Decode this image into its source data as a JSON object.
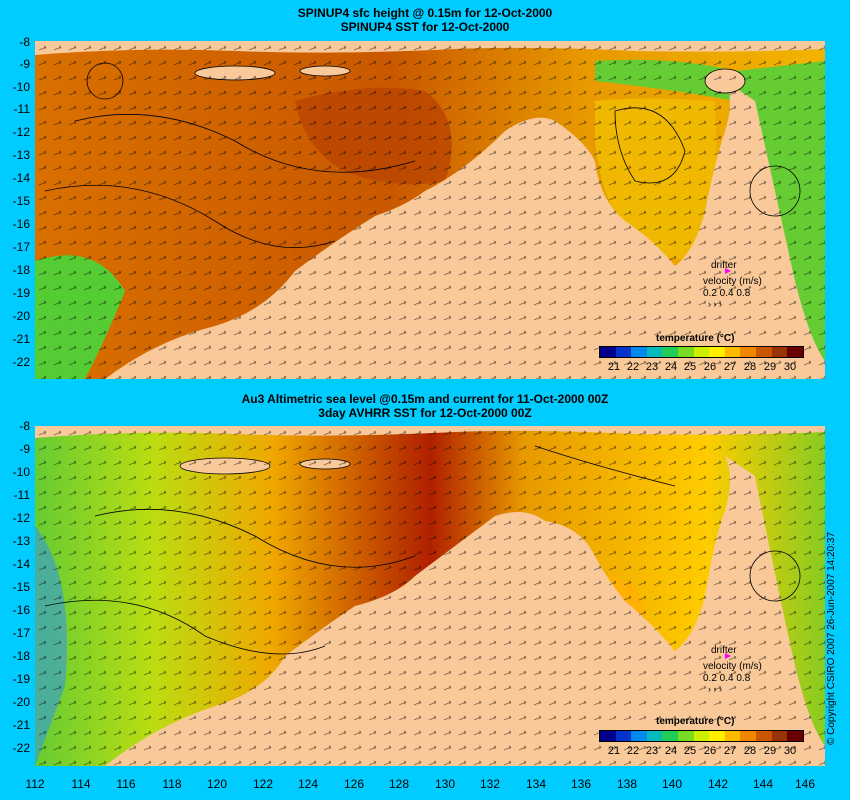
{
  "top_panel": {
    "title_line1": "SPINUP4 sfc height @ 0.15m for 12-Oct-2000",
    "title_line2": "SPINUP4 SST for 12-Oct-2000"
  },
  "bottom_panel": {
    "title_line1": "Au3 Altimetric sea level  @0.15m and current for 11-Oct-2000 00Z",
    "title_line2": "3day AVHRR SST for 12-Oct-2000 00Z"
  },
  "y_axis_labels": [
    "-8",
    "-9",
    "-10",
    "-11",
    "-12",
    "-13",
    "-14",
    "-15",
    "-16",
    "-17",
    "-18",
    "-19",
    "-20",
    "-21",
    "-22"
  ],
  "x_axis_labels": [
    "112",
    "114",
    "116",
    "118",
    "120",
    "122",
    "124",
    "126",
    "128",
    "130",
    "132",
    "134",
    "136",
    "138",
    "140",
    "142",
    "144",
    "146"
  ],
  "legend": {
    "title": "temperature (°C)",
    "ticks": [
      "21",
      "22",
      "23",
      "24",
      "25",
      "26",
      "27",
      "28",
      "29",
      "30"
    ],
    "colors": [
      "#00008b",
      "#0033cc",
      "#0088ee",
      "#00bbbb",
      "#22cc55",
      "#77dd22",
      "#ccee00",
      "#ffee00",
      "#ffbb00",
      "#ee8800",
      "#cc5500",
      "#993300",
      "#660000"
    ]
  },
  "drifter": {
    "label": "drifter",
    "velocity_label": "velocity (m/s)",
    "scale_values": "0.2 0.4 0.8",
    "marker_color": "#ff00ff"
  },
  "copyright": "© Copyright CSIRO 2007    26-Jun-2007 14:20:37",
  "colors": {
    "background": "#00ccff",
    "land": "#f9c99a",
    "warm_sea": "#d96b00",
    "hot_sea": "#a01800",
    "mid_sea": "#ffaa00",
    "cool_sea": "#44cc33"
  }
}
